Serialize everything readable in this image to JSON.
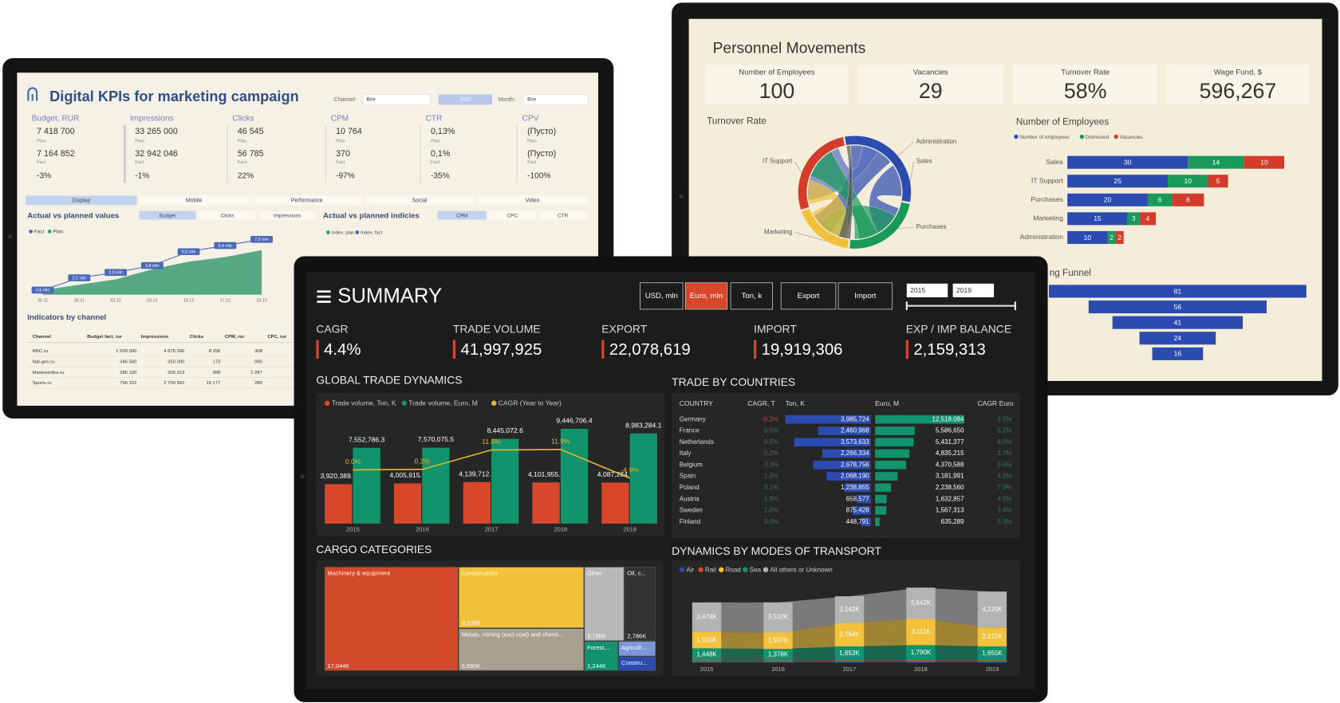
{
  "kpi_dashboard": {
    "title": "Digital KPIs for marketing campaign",
    "channel_label": "Channel:",
    "channel_value": "Все",
    "year": "2017",
    "month_label": "Month:",
    "month_value": "Все",
    "plan_label": "Plan",
    "fact_label": "Fact",
    "cards": [
      {
        "name": "Budget, RUR",
        "plan": "7 418 700",
        "fact": "7 164 852",
        "change": "-3%"
      },
      {
        "name": "Impressions",
        "plan": "33 265 000",
        "fact": "32 942 046",
        "change": "-1%"
      },
      {
        "name": "Clicks",
        "plan": "46 545",
        "fact": "56 785",
        "change": "22%"
      },
      {
        "name": "CPM",
        "plan": "10 764",
        "fact": "370",
        "change": "-97%"
      },
      {
        "name": "CTR",
        "plan": "0,13%",
        "fact": "0,1%",
        "change": "-35%"
      },
      {
        "name": "CPV",
        "plan": "(Пусто)",
        "fact": "(Пусто)",
        "change": "-100%"
      }
    ],
    "tabs": [
      "Display",
      "Mobile",
      "Performance",
      "Social",
      "Video"
    ],
    "active_tab": 0,
    "values_chart": {
      "type": "area",
      "title": "Actual vs planned values",
      "tabs": [
        "Budget",
        "Clicks",
        "Impressions"
      ],
      "active_tab": 0,
      "categories": [
        "26.11",
        "30.11",
        "02.12",
        "03.12",
        "10.12",
        "17.12",
        "24.12"
      ],
      "series": [
        {
          "name": "Fact",
          "color": "#4c68b8",
          "values": [
            0.6,
            2.2,
            2.9,
            3.8,
            5.6,
            6.4,
            7.2
          ],
          "value_labels": [
            "0,6 mln",
            "2,2 mln",
            "2,9 mln",
            "3,8 mln",
            "5,6 mln",
            "6,4 mln",
            "7,2 mln"
          ]
        },
        {
          "name": "Plan",
          "color": "#3b9b74",
          "values": [
            0.6,
            1.3,
            2.0,
            3.3,
            4.3,
            4.9,
            5.8
          ]
        }
      ]
    },
    "indices_chart": {
      "title": "Actual vs planned indicies",
      "tabs": [
        "CPM",
        "CPC",
        "CTR"
      ],
      "active_tab": 0,
      "legend": [
        "Index, plan",
        "Index, fact"
      ]
    },
    "channel_table": {
      "title": "Indicators by channel",
      "columns": [
        "Channel",
        "Budget fact, rur",
        "Impressions",
        "Clicks",
        "CPM, rur",
        "CPC, rur"
      ],
      "rows": [
        [
          "RBC.ru",
          "1 500 000",
          "4 875 266",
          "8 256",
          "308"
        ],
        [
          "Nat-geo.ru",
          "346 500",
          "350 000",
          "173",
          "990"
        ],
        [
          "Masimonline.ru",
          "386 100",
          "300 013",
          "999",
          "1 287"
        ],
        [
          "Sports.ru",
          "796 152",
          "2 759 992",
          "19 177",
          "289"
        ]
      ]
    }
  },
  "personnel": {
    "title": "Personnel Movements",
    "cards": [
      {
        "label": "Number of Employees",
        "value": "100"
      },
      {
        "label": "Vacancies",
        "value": "29"
      },
      {
        "label": "Turnover Rate",
        "value": "58%"
      },
      {
        "label": "Wage Fund, $",
        "value": "596,267"
      }
    ],
    "turnover_chart": {
      "type": "chord",
      "title": "Turnover Rate",
      "labels": [
        "Administration",
        "Sales",
        "IT Support",
        "Marketing",
        "Purchases"
      ]
    },
    "employees_chart": {
      "type": "bar",
      "orientation": "horizontal",
      "stacked": true,
      "title": "Number of Employees",
      "categories": [
        "Sales",
        "IT Support",
        "Purchases",
        "Marketing",
        "Administration"
      ],
      "series": [
        {
          "name": "Number of employees",
          "color": "#2c4bb0",
          "values": [
            30,
            25,
            20,
            15,
            10
          ]
        },
        {
          "name": "Dismissed",
          "color": "#1a9a5a",
          "values": [
            14,
            10,
            6,
            3,
            2
          ]
        },
        {
          "name": "Vacancies",
          "color": "#d33b2a",
          "values": [
            10,
            5,
            8,
            4,
            2
          ]
        }
      ]
    },
    "funnel_chart": {
      "type": "funnel",
      "title": "ng Funnel",
      "color": "#2c4bb0",
      "values": [
        81,
        56,
        41,
        24,
        16
      ]
    }
  },
  "summary": {
    "title": "SUMMARY",
    "unit_buttons": [
      "USD, mln",
      "Euro, mln",
      "Ton, k"
    ],
    "active_unit": 1,
    "action_buttons": [
      "Export",
      "Import"
    ],
    "year_range": [
      "2015",
      "2019"
    ],
    "kpis": [
      {
        "label": "CAGR",
        "value": "4.4%"
      },
      {
        "label": "TRADE VOLUME",
        "value": "41,997,925"
      },
      {
        "label": "EXPORT",
        "value": "22,078,619"
      },
      {
        "label": "IMPORT",
        "value": "19,919,306"
      },
      {
        "label": "EXP / IMP BALANCE",
        "value": "2,159,313"
      }
    ],
    "trade_dynamics": {
      "type": "bar",
      "title": "GLOBAL TRADE DYNAMICS",
      "categories": [
        "2015",
        "2016",
        "2017",
        "2018",
        "2019"
      ],
      "series": [
        {
          "name": "Trade volume, Ton, K",
          "color": "#d9472b",
          "values": [
            3920389.2,
            4005915.9,
            4139712.9,
            4101955.2,
            4087284.5
          ],
          "value_labels": [
            "3,920,389.2",
            "4,005,915.9",
            "4,139,712.9",
            "4,101,955.2",
            "4,087,284.5"
          ]
        },
        {
          "name": "Trade volume, Euro, M",
          "color": "#11936b",
          "values": [
            7552786.3,
            7570075.5,
            8445072.6,
            9446706.4,
            8983284.1
          ],
          "value_labels": [
            "7,552,786.3",
            "7,570,075.5",
            "8,445,072.6",
            "9,446,706.4",
            "8,983,284.1"
          ]
        },
        {
          "name": "CAGR (Year to Year)",
          "type": "line",
          "color": "#e8b52c",
          "values": [
            0.0,
            0.2,
            11.6,
            11.9,
            -4.9
          ],
          "value_labels": [
            "0.0%",
            "0.2%",
            "11.6%",
            "11.9%",
            "-4.9%"
          ]
        }
      ]
    },
    "countries": {
      "title": "TRADE BY COUNTRIES",
      "columns": [
        "COUNTRY",
        "CAGR, T",
        "Ton, K",
        "Euro, M",
        "CAGR Euro"
      ],
      "ton_color": "#2c4bb0",
      "euro_color": "#11936b",
      "rows": [
        {
          "country": "Germany",
          "cagr_t": "-0.2%",
          "ton": 3985724,
          "ton_label": "3,985,724",
          "euro": 12518084,
          "euro_label": "12,518,084",
          "cagr_euro": "3.5%"
        },
        {
          "country": "France",
          "cagr_t": "0.5%",
          "ton": 2460968,
          "ton_label": "2,460,968",
          "euro": 5586650,
          "euro_label": "5,586,650",
          "cagr_euro": "5.2%"
        },
        {
          "country": "Netherlands",
          "cagr_t": "0.5%",
          "ton": 3573633,
          "ton_label": "3,573,633",
          "euro": 5431377,
          "euro_label": "5,431,377",
          "cagr_euro": "6.0%"
        },
        {
          "country": "Italy",
          "cagr_t": "0.2%",
          "ton": 2266334,
          "ton_label": "2,266,334",
          "euro": 4835215,
          "euro_label": "4,835,215",
          "cagr_euro": "3.7%"
        },
        {
          "country": "Belgium",
          "cagr_t": "3.3%",
          "ton": 2678756,
          "ton_label": "2,678,756",
          "euro": 4370588,
          "euro_label": "4,370,588",
          "cagr_euro": "3.4%"
        },
        {
          "country": "Spain",
          "cagr_t": "1.3%",
          "ton": 2068190,
          "ton_label": "2,068,190",
          "euro": 3181991,
          "euro_label": "3,181,991",
          "cagr_euro": "4.2%"
        },
        {
          "country": "Poland",
          "cagr_t": "3.1%",
          "ton": 1238855,
          "ton_label": "1,238,855",
          "euro": 2238560,
          "euro_label": "2,238,560",
          "cagr_euro": "7.0%"
        },
        {
          "country": "Austria",
          "cagr_t": "1.8%",
          "ton": 658577,
          "ton_label": "658,577",
          "euro": 1632857,
          "euro_label": "1,632,857",
          "cagr_euro": "4.5%"
        },
        {
          "country": "Sweden",
          "cagr_t": "1.0%",
          "ton": 875428,
          "ton_label": "875,428",
          "euro": 1567313,
          "euro_label": "1,567,313",
          "cagr_euro": "3.4%"
        },
        {
          "country": "Finland",
          "cagr_t": "3.0%",
          "ton": 448791,
          "ton_label": "448,791",
          "euro": 635289,
          "euro_label": "635,289",
          "cagr_euro": "5.3%"
        }
      ]
    },
    "cargo": {
      "type": "treemap",
      "title": "CARGO CATEGORIES",
      "categories": [
        "Machinery & equipment",
        "Consumables",
        "Metals, mining (excl coal) and chemi...",
        "Other",
        "Oil, c...",
        "Forest,...",
        "Agricult...",
        "Constru..."
      ],
      "values": [
        17044,
        9109,
        6680,
        3755,
        2786,
        1244,
        630,
        555
      ],
      "value_labels": [
        "17,044K",
        "9,109K",
        "6,680K",
        "3,755K",
        "2,786K",
        "1,244K",
        null,
        null
      ],
      "colors": [
        "#d34a2a",
        "#f2c23c",
        "#a99f8f",
        "#b8b8b8",
        "#333333",
        "#11936b",
        "#7c96d9",
        "#2c4bb0"
      ]
    },
    "transport": {
      "type": "area",
      "stacked": true,
      "title": "DYNAMICS BY MODES OF TRANSPORT",
      "categories": [
        "2015",
        "2016",
        "2017",
        "2018",
        "2019"
      ],
      "series": [
        {
          "name": "Air",
          "color": "#2c4bb0",
          "values": [
            110,
            110,
            120,
            130,
            120
          ]
        },
        {
          "name": "Rail",
          "color": "#d9472b",
          "values": [
            140,
            140,
            150,
            160,
            150
          ]
        },
        {
          "name": "Road",
          "color": "#f2c23c",
          "values": [
            1915,
            1937,
            2754,
            3111,
            2221
          ],
          "value_labels": [
            "1,915K",
            "1,937K",
            "2,754K",
            "3,111K",
            "2,221K"
          ]
        },
        {
          "name": "Sea",
          "color": "#11936b",
          "values": [
            1448,
            1378,
            1653,
            1790,
            1655
          ],
          "value_labels": [
            "1,448K",
            "1,378K",
            "1,653K",
            "1,790K",
            "1,655K"
          ]
        },
        {
          "name": "All others or Unknown",
          "color": "#b3b3b3",
          "values": [
            3478,
            3532,
            3142,
            3642,
            4220
          ],
          "value_labels": [
            "3,478K",
            "3,532K",
            "3,142K",
            "3,642K",
            "4,220K"
          ]
        }
      ]
    }
  }
}
